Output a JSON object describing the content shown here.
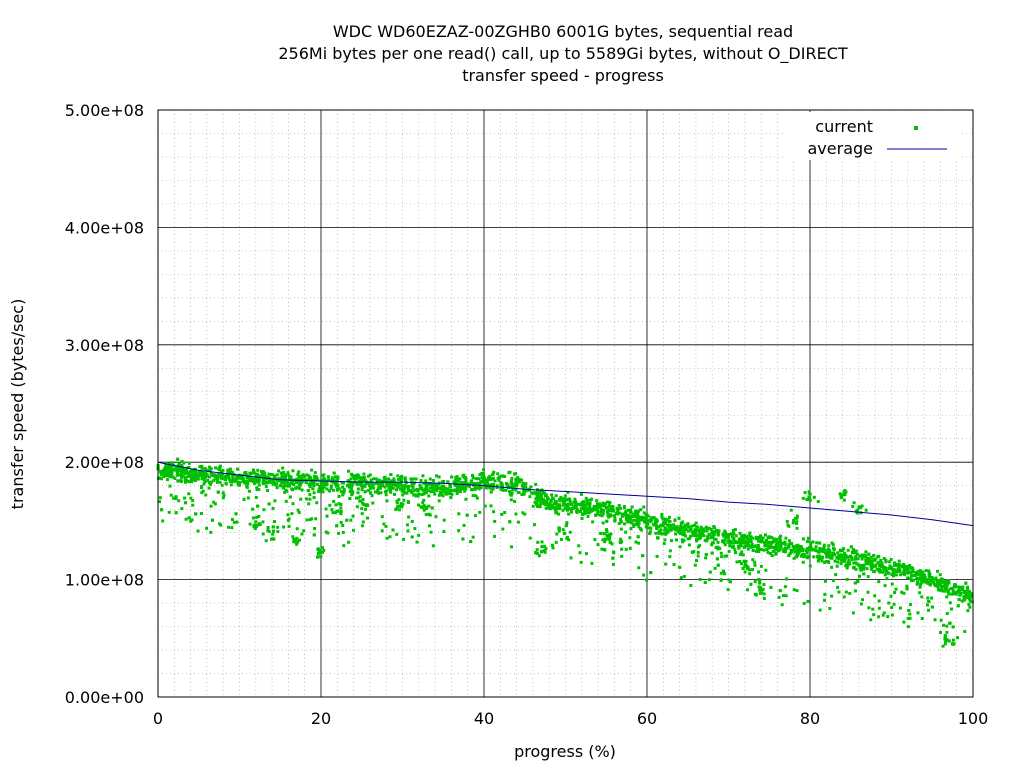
{
  "chart_data": {
    "type": "scatter",
    "title_lines": [
      "WDC WD60EZAZ-00ZGHB0 6001G bytes, sequential read",
      "256Mi bytes per one read() call, up to 5589Gi bytes, without O_DIRECT",
      "transfer speed - progress"
    ],
    "xlabel": "progress (%)",
    "ylabel": "transfer speed (bytes/sec)",
    "xlim": [
      0,
      100
    ],
    "ylim": [
      0,
      500000000
    ],
    "x_ticks": [
      0,
      20,
      40,
      60,
      80,
      100
    ],
    "x_tick_labels": [
      "0",
      "20",
      "40",
      "60",
      "80",
      "100"
    ],
    "y_ticks": [
      0,
      100000000,
      200000000,
      300000000,
      400000000,
      500000000
    ],
    "y_tick_labels": [
      "0.00e+00",
      "1.00e+08",
      "2.00e+08",
      "3.00e+08",
      "4.00e+08",
      "5.00e+08"
    ],
    "grid": true,
    "legend_position": "top-right",
    "series": [
      {
        "name": "current",
        "style": "points",
        "color": "#00c000",
        "trend": [
          [
            0,
            195000000
          ],
          [
            5,
            190000000
          ],
          [
            10,
            186000000
          ],
          [
            15,
            184000000
          ],
          [
            20,
            183000000
          ],
          [
            25,
            182000000
          ],
          [
            30,
            180000000
          ],
          [
            35,
            178000000
          ],
          [
            40,
            183000000
          ],
          [
            44,
            182000000
          ],
          [
            48,
            165000000
          ],
          [
            55,
            160000000
          ],
          [
            60,
            150000000
          ],
          [
            65,
            142000000
          ],
          [
            70,
            135000000
          ],
          [
            75,
            130000000
          ],
          [
            80,
            125000000
          ],
          [
            85,
            118000000
          ],
          [
            90,
            110000000
          ],
          [
            95,
            100000000
          ],
          [
            100,
            85000000
          ]
        ],
        "dips": [
          [
            12,
            148000000
          ],
          [
            14,
            140000000
          ],
          [
            17,
            135000000
          ],
          [
            20,
            122000000
          ],
          [
            22,
            160000000
          ],
          [
            25,
            165000000
          ],
          [
            30,
            165000000
          ],
          [
            33,
            163000000
          ],
          [
            47,
            125000000
          ],
          [
            50,
            140000000
          ],
          [
            55,
            135000000
          ],
          [
            62,
            140000000
          ],
          [
            72,
            110000000
          ],
          [
            74,
            93000000
          ],
          [
            78,
            150000000
          ],
          [
            80,
            170000000
          ],
          [
            84,
            172000000
          ],
          [
            86,
            160000000
          ],
          [
            97,
            48000000
          ]
        ]
      },
      {
        "name": "average",
        "style": "line",
        "color": "#0000a0",
        "points": [
          [
            0,
            200000000
          ],
          [
            5,
            193000000
          ],
          [
            10,
            189000000
          ],
          [
            15,
            185000000
          ],
          [
            20,
            184000000
          ],
          [
            25,
            183000000
          ],
          [
            30,
            183000000
          ],
          [
            35,
            182000000
          ],
          [
            40,
            180000000
          ],
          [
            45,
            177000000
          ],
          [
            50,
            175000000
          ],
          [
            55,
            173000000
          ],
          [
            60,
            171000000
          ],
          [
            65,
            169000000
          ],
          [
            70,
            166000000
          ],
          [
            75,
            164000000
          ],
          [
            80,
            161000000
          ],
          [
            85,
            158000000
          ],
          [
            90,
            155000000
          ],
          [
            95,
            151000000
          ],
          [
            100,
            146000000
          ]
        ]
      }
    ]
  }
}
